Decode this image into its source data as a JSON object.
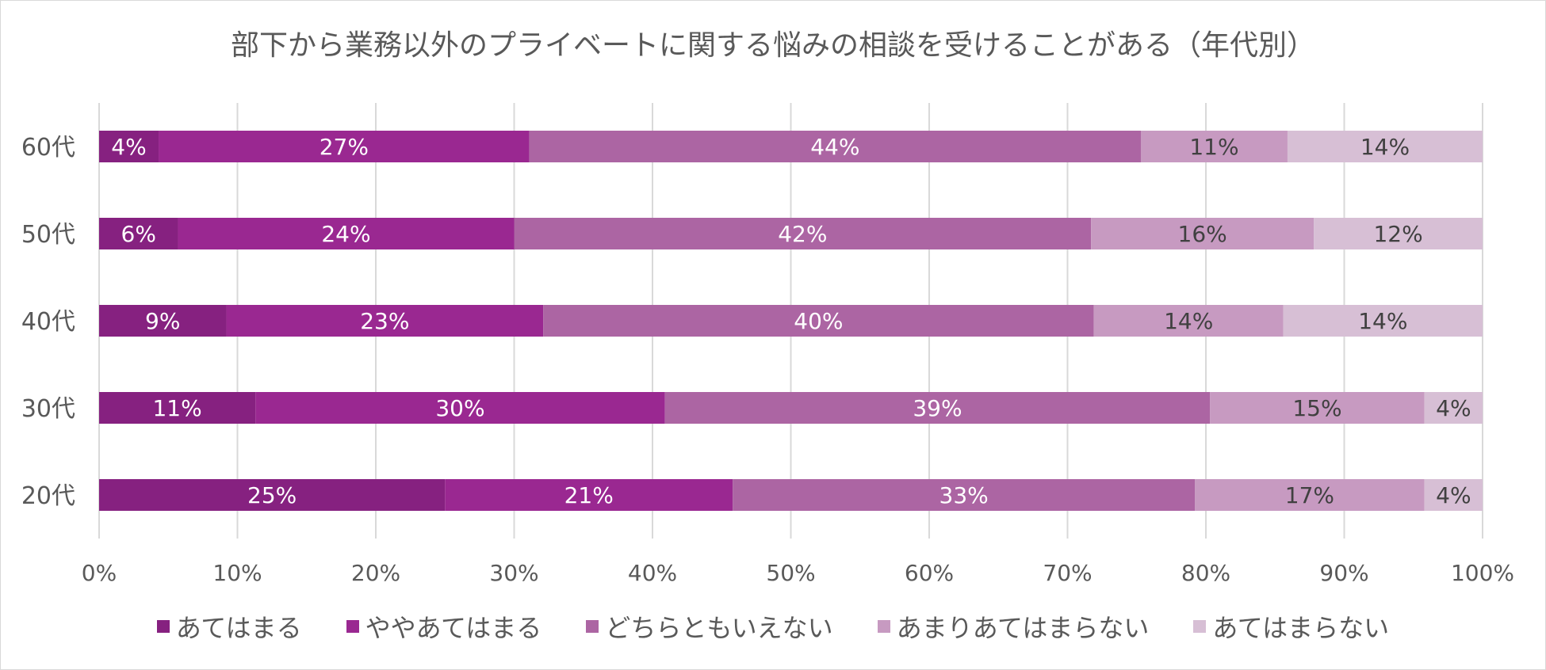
{
  "chart_data": {
    "type": "bar",
    "orientation": "horizontal",
    "stacked": true,
    "title": "部下から業務以外のプライベートに関する悩みの相談を受けることがある（年代別）",
    "categories": [
      "60代",
      "50代",
      "40代",
      "30代",
      "20代"
    ],
    "series": [
      {
        "name": "あてはまる",
        "values": [
          4.3,
          5.7,
          9.2,
          11.3,
          25.0
        ],
        "labels": [
          "4%",
          "6%",
          "9%",
          "11%",
          "25%"
        ],
        "color": "#862180",
        "label_color": "#ffffff"
      },
      {
        "name": "ややあてはまる",
        "values": [
          26.8,
          24.3,
          22.9,
          29.6,
          20.8
        ],
        "labels": [
          "27%",
          "24%",
          "23%",
          "30%",
          "21%"
        ],
        "color": "#9a2891",
        "label_color": "#ffffff"
      },
      {
        "name": "どちらともいえない",
        "values": [
          44.2,
          41.7,
          39.8,
          39.4,
          33.4
        ],
        "labels": [
          "44%",
          "42%",
          "40%",
          "39%",
          "33%"
        ],
        "color": "#ac65a3",
        "label_color": "#ffffff"
      },
      {
        "name": "あまりあてはまらない",
        "values": [
          10.6,
          16.1,
          13.7,
          15.5,
          16.6
        ],
        "labels": [
          "11%",
          "16%",
          "14%",
          "15%",
          "17%"
        ],
        "color": "#c79ac1",
        "label_color": "#404040"
      },
      {
        "name": "あてはまらない",
        "values": [
          14.1,
          12.2,
          14.4,
          4.2,
          4.2
        ],
        "labels": [
          "14%",
          "12%",
          "14%",
          "4%",
          "4%"
        ],
        "color": "#d7bfd5",
        "label_color": "#404040"
      }
    ],
    "xlim": [
      0,
      100
    ],
    "xticks": [
      "0%",
      "10%",
      "20%",
      "30%",
      "40%",
      "50%",
      "60%",
      "70%",
      "80%",
      "90%",
      "100%"
    ],
    "grid": true,
    "legend_position": "bottom"
  }
}
